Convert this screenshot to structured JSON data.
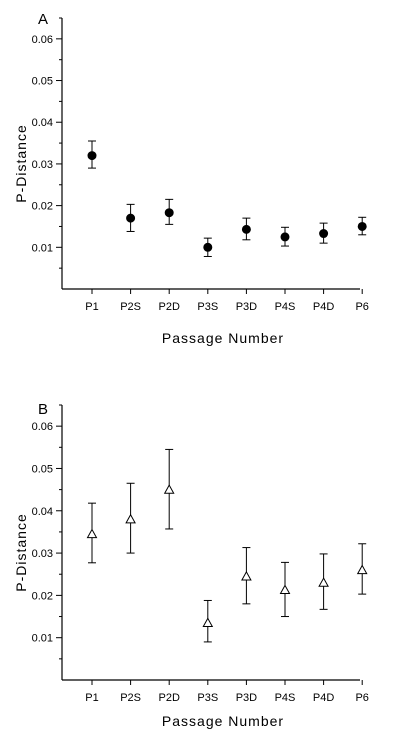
{
  "chart_data": [
    {
      "type": "scatter",
      "panel_label": "A",
      "xlabel": "Passage Number",
      "ylabel": "P-Distance",
      "categories": [
        "P1",
        "P2S",
        "P2D",
        "P3S",
        "P3D",
        "P4S",
        "P4D",
        "P6"
      ],
      "ylim": [
        0,
        0.065
      ],
      "yticks": [
        "0.01",
        "0.02",
        "0.03",
        "0.04",
        "0.05",
        "0.06"
      ],
      "marker": "filled-circle",
      "values": [
        0.032,
        0.017,
        0.0183,
        0.01,
        0.0143,
        0.0125,
        0.0133,
        0.015
      ],
      "error_low": [
        0.029,
        0.0138,
        0.0155,
        0.0078,
        0.0118,
        0.0103,
        0.011,
        0.013
      ],
      "error_high": [
        0.0355,
        0.0203,
        0.0215,
        0.0122,
        0.017,
        0.0148,
        0.0158,
        0.0172
      ]
    },
    {
      "type": "scatter",
      "panel_label": "B",
      "xlabel": "Passage Number",
      "ylabel": "P-Distance",
      "categories": [
        "P1",
        "P2S",
        "P2D",
        "P3S",
        "P3D",
        "P4S",
        "P4D",
        "P6"
      ],
      "ylim": [
        0,
        0.065
      ],
      "yticks": [
        "0.01",
        "0.02",
        "0.03",
        "0.04",
        "0.05",
        "0.06"
      ],
      "marker": "open-triangle",
      "values": [
        0.0345,
        0.038,
        0.045,
        0.0135,
        0.0245,
        0.0213,
        0.023,
        0.026
      ],
      "error_low": [
        0.0277,
        0.03,
        0.0357,
        0.009,
        0.018,
        0.015,
        0.0167,
        0.0203
      ],
      "error_high": [
        0.0418,
        0.0465,
        0.0545,
        0.0188,
        0.0313,
        0.0278,
        0.0298,
        0.0322
      ]
    }
  ]
}
